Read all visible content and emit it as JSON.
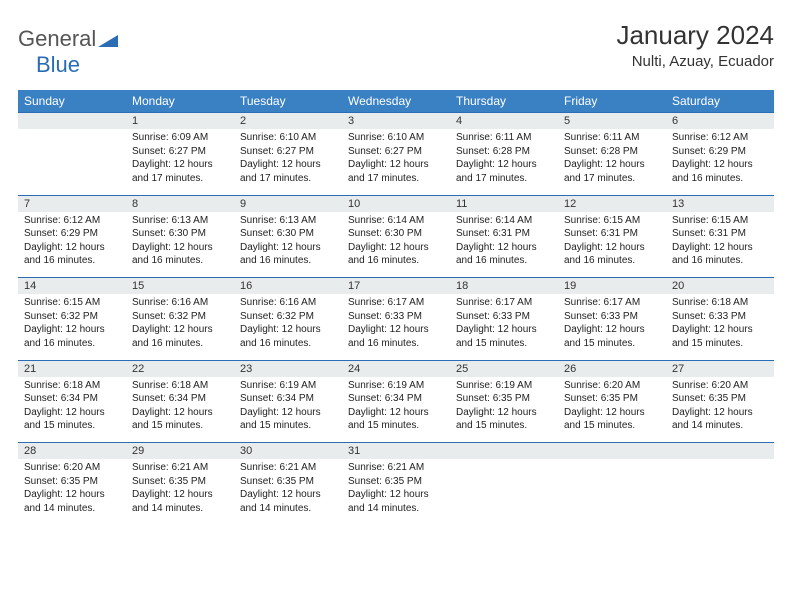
{
  "logo": {
    "general": "General",
    "blue": "Blue"
  },
  "title": "January 2024",
  "location": "Nulti, Azuay, Ecuador",
  "colors": {
    "header_bg": "#3a81c4",
    "border": "#2a6db5",
    "daynum_bg": "#e9eced",
    "text": "#222222",
    "logo_gray": "#555555",
    "logo_blue": "#2a6db5"
  },
  "weekdays": [
    "Sunday",
    "Monday",
    "Tuesday",
    "Wednesday",
    "Thursday",
    "Friday",
    "Saturday"
  ],
  "weeks": [
    [
      null,
      {
        "day": "1",
        "sunrise": "Sunrise: 6:09 AM",
        "sunset": "Sunset: 6:27 PM",
        "daylight": "Daylight: 12 hours and 17 minutes."
      },
      {
        "day": "2",
        "sunrise": "Sunrise: 6:10 AM",
        "sunset": "Sunset: 6:27 PM",
        "daylight": "Daylight: 12 hours and 17 minutes."
      },
      {
        "day": "3",
        "sunrise": "Sunrise: 6:10 AM",
        "sunset": "Sunset: 6:27 PM",
        "daylight": "Daylight: 12 hours and 17 minutes."
      },
      {
        "day": "4",
        "sunrise": "Sunrise: 6:11 AM",
        "sunset": "Sunset: 6:28 PM",
        "daylight": "Daylight: 12 hours and 17 minutes."
      },
      {
        "day": "5",
        "sunrise": "Sunrise: 6:11 AM",
        "sunset": "Sunset: 6:28 PM",
        "daylight": "Daylight: 12 hours and 17 minutes."
      },
      {
        "day": "6",
        "sunrise": "Sunrise: 6:12 AM",
        "sunset": "Sunset: 6:29 PM",
        "daylight": "Daylight: 12 hours and 16 minutes."
      }
    ],
    [
      {
        "day": "7",
        "sunrise": "Sunrise: 6:12 AM",
        "sunset": "Sunset: 6:29 PM",
        "daylight": "Daylight: 12 hours and 16 minutes."
      },
      {
        "day": "8",
        "sunrise": "Sunrise: 6:13 AM",
        "sunset": "Sunset: 6:30 PM",
        "daylight": "Daylight: 12 hours and 16 minutes."
      },
      {
        "day": "9",
        "sunrise": "Sunrise: 6:13 AM",
        "sunset": "Sunset: 6:30 PM",
        "daylight": "Daylight: 12 hours and 16 minutes."
      },
      {
        "day": "10",
        "sunrise": "Sunrise: 6:14 AM",
        "sunset": "Sunset: 6:30 PM",
        "daylight": "Daylight: 12 hours and 16 minutes."
      },
      {
        "day": "11",
        "sunrise": "Sunrise: 6:14 AM",
        "sunset": "Sunset: 6:31 PM",
        "daylight": "Daylight: 12 hours and 16 minutes."
      },
      {
        "day": "12",
        "sunrise": "Sunrise: 6:15 AM",
        "sunset": "Sunset: 6:31 PM",
        "daylight": "Daylight: 12 hours and 16 minutes."
      },
      {
        "day": "13",
        "sunrise": "Sunrise: 6:15 AM",
        "sunset": "Sunset: 6:31 PM",
        "daylight": "Daylight: 12 hours and 16 minutes."
      }
    ],
    [
      {
        "day": "14",
        "sunrise": "Sunrise: 6:15 AM",
        "sunset": "Sunset: 6:32 PM",
        "daylight": "Daylight: 12 hours and 16 minutes."
      },
      {
        "day": "15",
        "sunrise": "Sunrise: 6:16 AM",
        "sunset": "Sunset: 6:32 PM",
        "daylight": "Daylight: 12 hours and 16 minutes."
      },
      {
        "day": "16",
        "sunrise": "Sunrise: 6:16 AM",
        "sunset": "Sunset: 6:32 PM",
        "daylight": "Daylight: 12 hours and 16 minutes."
      },
      {
        "day": "17",
        "sunrise": "Sunrise: 6:17 AM",
        "sunset": "Sunset: 6:33 PM",
        "daylight": "Daylight: 12 hours and 16 minutes."
      },
      {
        "day": "18",
        "sunrise": "Sunrise: 6:17 AM",
        "sunset": "Sunset: 6:33 PM",
        "daylight": "Daylight: 12 hours and 15 minutes."
      },
      {
        "day": "19",
        "sunrise": "Sunrise: 6:17 AM",
        "sunset": "Sunset: 6:33 PM",
        "daylight": "Daylight: 12 hours and 15 minutes."
      },
      {
        "day": "20",
        "sunrise": "Sunrise: 6:18 AM",
        "sunset": "Sunset: 6:33 PM",
        "daylight": "Daylight: 12 hours and 15 minutes."
      }
    ],
    [
      {
        "day": "21",
        "sunrise": "Sunrise: 6:18 AM",
        "sunset": "Sunset: 6:34 PM",
        "daylight": "Daylight: 12 hours and 15 minutes."
      },
      {
        "day": "22",
        "sunrise": "Sunrise: 6:18 AM",
        "sunset": "Sunset: 6:34 PM",
        "daylight": "Daylight: 12 hours and 15 minutes."
      },
      {
        "day": "23",
        "sunrise": "Sunrise: 6:19 AM",
        "sunset": "Sunset: 6:34 PM",
        "daylight": "Daylight: 12 hours and 15 minutes."
      },
      {
        "day": "24",
        "sunrise": "Sunrise: 6:19 AM",
        "sunset": "Sunset: 6:34 PM",
        "daylight": "Daylight: 12 hours and 15 minutes."
      },
      {
        "day": "25",
        "sunrise": "Sunrise: 6:19 AM",
        "sunset": "Sunset: 6:35 PM",
        "daylight": "Daylight: 12 hours and 15 minutes."
      },
      {
        "day": "26",
        "sunrise": "Sunrise: 6:20 AM",
        "sunset": "Sunset: 6:35 PM",
        "daylight": "Daylight: 12 hours and 15 minutes."
      },
      {
        "day": "27",
        "sunrise": "Sunrise: 6:20 AM",
        "sunset": "Sunset: 6:35 PM",
        "daylight": "Daylight: 12 hours and 14 minutes."
      }
    ],
    [
      {
        "day": "28",
        "sunrise": "Sunrise: 6:20 AM",
        "sunset": "Sunset: 6:35 PM",
        "daylight": "Daylight: 12 hours and 14 minutes."
      },
      {
        "day": "29",
        "sunrise": "Sunrise: 6:21 AM",
        "sunset": "Sunset: 6:35 PM",
        "daylight": "Daylight: 12 hours and 14 minutes."
      },
      {
        "day": "30",
        "sunrise": "Sunrise: 6:21 AM",
        "sunset": "Sunset: 6:35 PM",
        "daylight": "Daylight: 12 hours and 14 minutes."
      },
      {
        "day": "31",
        "sunrise": "Sunrise: 6:21 AM",
        "sunset": "Sunset: 6:35 PM",
        "daylight": "Daylight: 12 hours and 14 minutes."
      },
      null,
      null,
      null
    ]
  ]
}
